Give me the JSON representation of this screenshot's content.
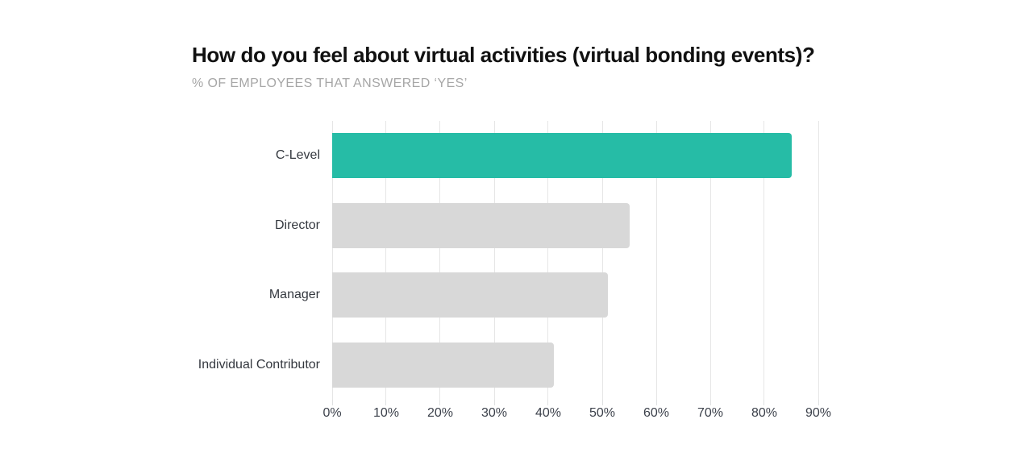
{
  "chart_data": {
    "type": "bar",
    "orientation": "horizontal",
    "title": "How do you feel about virtual activities (virtual bonding events)?",
    "subtitle": "% OF EMPLOYEES THAT ANSWERED ‘YES’",
    "categories": [
      "C-Level",
      "Director",
      "Manager",
      "Individual Contributor"
    ],
    "values": [
      85,
      55,
      51,
      41
    ],
    "highlight_index": 0,
    "xlim": [
      0,
      90
    ],
    "xticks": [
      0,
      10,
      20,
      30,
      40,
      50,
      60,
      70,
      80,
      90
    ],
    "xtick_labels": [
      "0%",
      "10%",
      "20%",
      "30%",
      "40%",
      "50%",
      "60%",
      "70%",
      "80%",
      "90%"
    ],
    "grid": "vertical",
    "legend": "none",
    "colors": {
      "highlight_bar": "#26bca6",
      "default_bar": "#d8d8d8",
      "gridline": "#e6e6e6",
      "tick_mark": "#dfe1e2",
      "tick_label": "#3c414b",
      "category_label": "#34383f",
      "title": "#111111",
      "subtitle": "#a6a6a6",
      "background": "#ffffff"
    }
  }
}
